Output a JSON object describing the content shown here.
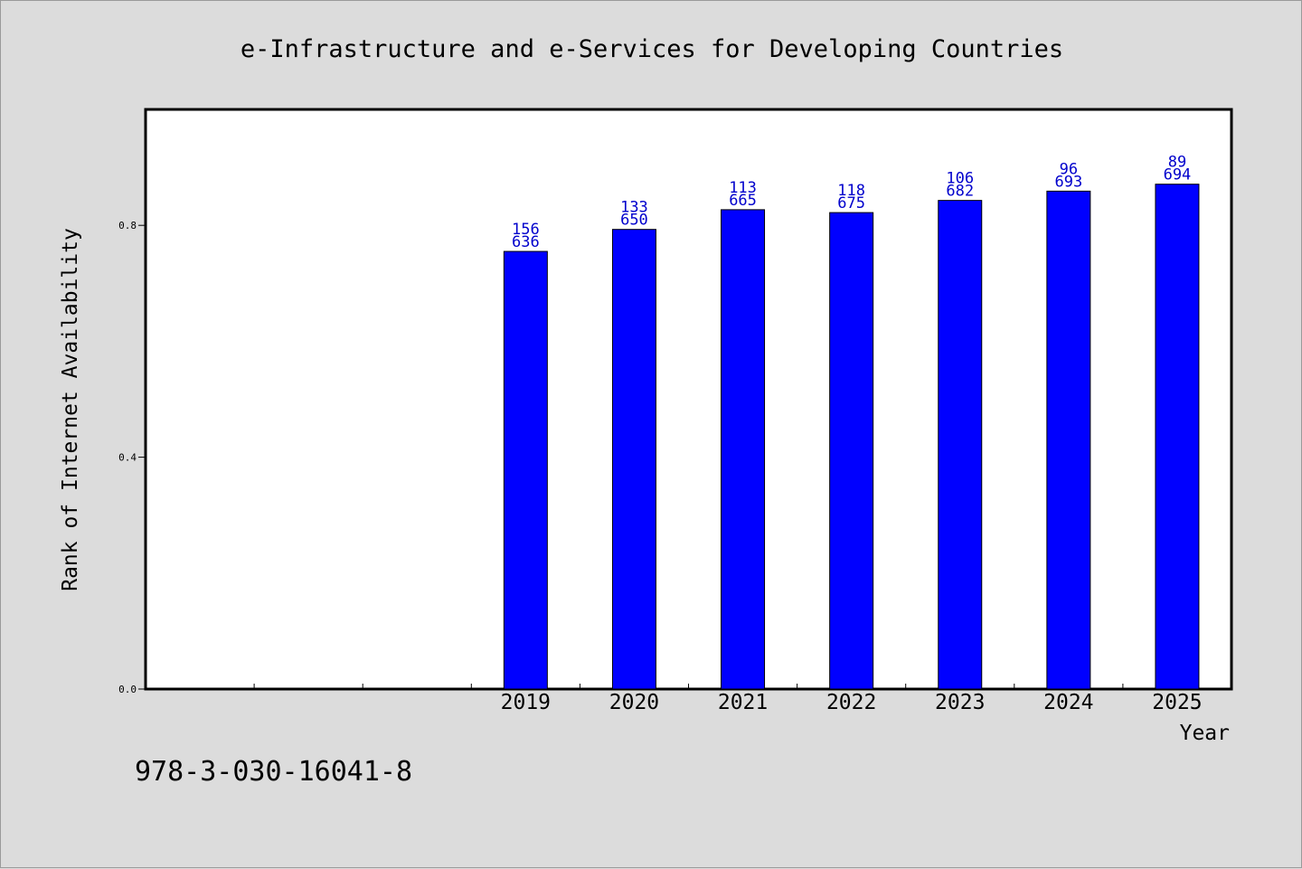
{
  "colors": {
    "background": "#dcdcdc",
    "plot_background": "#ffffff",
    "bar_fill": "#0000ff",
    "bar_stroke": "#000000",
    "label_color": "#0000cc"
  },
  "isbn": "978-3-030-16041-8",
  "chart_data": {
    "type": "bar",
    "title": "e-Infrastructure and e-Services for Developing Countries",
    "xlabel": "Year",
    "ylabel": "Rank of Internet Availability",
    "ylim": [
      0,
      1.0
    ],
    "yticks": [
      "0.0",
      "0.4",
      "0.8"
    ],
    "ytick_values": [
      0.0,
      0.4,
      0.8
    ],
    "categories": [
      "",
      "",
      "",
      "2019",
      "2020",
      "2021",
      "2022",
      "2023",
      "2024",
      "2025"
    ],
    "values": [
      null,
      null,
      null,
      0.755,
      0.793,
      0.827,
      0.822,
      0.843,
      0.859,
      0.871
    ],
    "bar_labels_top": [
      "",
      "",
      "",
      "156",
      "133",
      "113",
      "118",
      "106",
      "96",
      "89"
    ],
    "bar_labels_bottom": [
      "",
      "",
      "",
      "636",
      "650",
      "665",
      "675",
      "682",
      "693",
      "694"
    ],
    "grid": false,
    "legend": "none"
  }
}
